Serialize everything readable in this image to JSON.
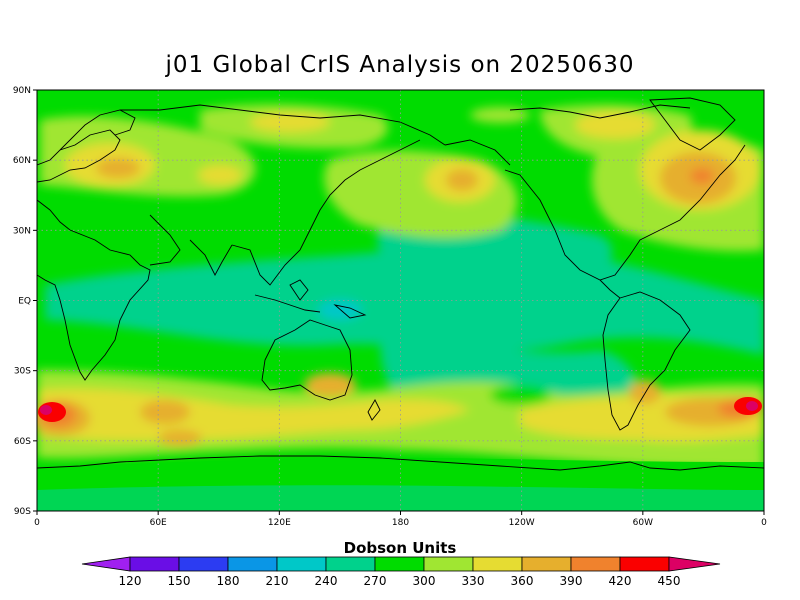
{
  "title": "j01 Global CrIS Analysis on 20250630",
  "map": {
    "lon_ticks": [
      "0",
      "60E",
      "120E",
      "180",
      "120W",
      "60W",
      "0"
    ],
    "lat_ticks": [
      "90N",
      "60N",
      "30N",
      "EQ",
      "30S",
      "60S",
      "90S"
    ],
    "grid": "dotted",
    "field": "total column ozone"
  },
  "colorbar": {
    "units": "Dobson Units",
    "labels": [
      "120",
      "150",
      "180",
      "210",
      "240",
      "270",
      "300",
      "330",
      "360",
      "390",
      "420",
      "450"
    ],
    "colors": [
      "#a020f0",
      "#6a0ee6",
      "#2c3cf2",
      "#0a96e6",
      "#00c8c8",
      "#00d28c",
      "#00dc00",
      "#a0e632",
      "#e6dc32",
      "#e6af2d",
      "#f0822d",
      "#fa0000",
      "#dc0064"
    ]
  }
}
